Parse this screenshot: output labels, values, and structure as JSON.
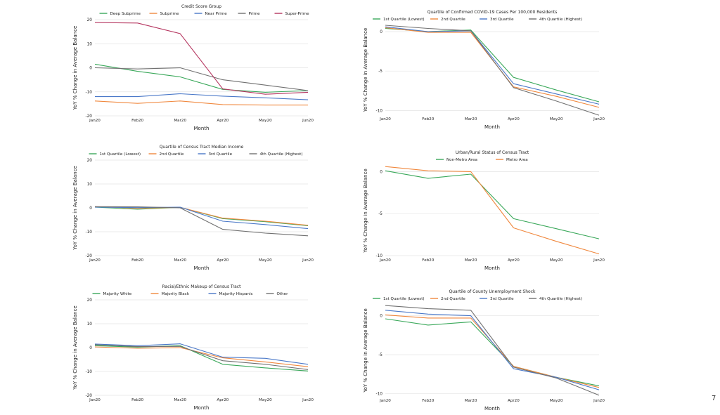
{
  "page": {
    "number": "7"
  },
  "chart_data": [
    {
      "type": "line",
      "legend_title": "Credit Score Group",
      "xlabel": "Month",
      "ylabel": "YoY % Change in Average Balance",
      "categories": [
        "Jan20",
        "Feb20",
        "Mar20",
        "Apr20",
        "May20",
        "Jun20"
      ],
      "ylim": [
        -20,
        20
      ],
      "yticks": [
        -20,
        -10,
        0,
        10,
        20
      ],
      "series": [
        {
          "name": "Deep Subprime",
          "color": "#3aa85a",
          "values": [
            1.5,
            -1.5,
            -3.8,
            -9.0,
            -10.2,
            -9.5
          ]
        },
        {
          "name": "Subprime",
          "color": "#f0883e",
          "values": [
            -13.8,
            -14.8,
            -13.8,
            -15.3,
            -15.5,
            -15.5
          ]
        },
        {
          "name": "Near Prime",
          "color": "#4a78c8",
          "values": [
            -12.0,
            -12.0,
            -10.8,
            -11.8,
            -12.5,
            -13.3
          ]
        },
        {
          "name": "Prime",
          "color": "#707070",
          "values": [
            0.0,
            -0.5,
            0.0,
            -5.0,
            -7.2,
            -9.5
          ]
        },
        {
          "name": "Super-Prime",
          "color": "#b5355f",
          "values": [
            18.8,
            18.6,
            14.2,
            -8.8,
            -11.0,
            -10.2
          ]
        }
      ]
    },
    {
      "type": "line",
      "legend_title": "Quartile of Confirmed COVID-19 Cases Per 100,000 Residents",
      "xlabel": "Month",
      "ylabel": "YoY % Change in Average Balance",
      "categories": [
        "Jan20",
        "Feb20",
        "Mar20",
        "Apr20",
        "May20",
        "Jun20"
      ],
      "ylim": [
        -10.5,
        0.8
      ],
      "yticks": [
        -10,
        -5,
        0
      ],
      "series": [
        {
          "name": "1st Quartile (Lowest)",
          "color": "#3aa85a",
          "values": [
            0.4,
            0.0,
            0.2,
            -5.8,
            -7.4,
            -8.9
          ]
        },
        {
          "name": "2nd Quartile",
          "color": "#f0883e",
          "values": [
            0.5,
            -0.1,
            -0.1,
            -7.0,
            -8.2,
            -9.6
          ]
        },
        {
          "name": "3rd Quartile",
          "color": "#4a78c8",
          "values": [
            0.6,
            0.0,
            0.1,
            -6.6,
            -7.9,
            -9.2
          ]
        },
        {
          "name": "4th Quartile (Highest)",
          "color": "#707070",
          "values": [
            0.8,
            0.4,
            0.1,
            -7.1,
            -8.8,
            -10.6
          ]
        }
      ]
    },
    {
      "type": "line",
      "legend_title": "Quartile of Census Tract Median Income",
      "xlabel": "Month",
      "ylabel": "YoY % Change in Average Balance",
      "categories": [
        "Jan20",
        "Feb20",
        "Mar20",
        "Apr20",
        "May20",
        "Jun20"
      ],
      "ylim": [
        -20,
        20
      ],
      "yticks": [
        -20,
        -10,
        0,
        10,
        20
      ],
      "series": [
        {
          "name": "1st Quartile (Lowest)",
          "color": "#3aa85a",
          "values": [
            0.3,
            -0.6,
            0.2,
            -4.5,
            -5.8,
            -7.5
          ]
        },
        {
          "name": "2nd Quartile",
          "color": "#f0883e",
          "values": [
            0.5,
            -0.2,
            0.2,
            -4.3,
            -5.6,
            -7.3
          ]
        },
        {
          "name": "3rd Quartile",
          "color": "#4a78c8",
          "values": [
            0.3,
            0.1,
            0.3,
            -5.6,
            -7.0,
            -8.7
          ]
        },
        {
          "name": "4th Quartile (Highest)",
          "color": "#707070",
          "values": [
            0.5,
            0.4,
            0.0,
            -9.0,
            -10.6,
            -11.7
          ]
        }
      ]
    },
    {
      "type": "line",
      "legend_title": "Urban/Rural Status of Census Tract",
      "xlabel": "Month",
      "ylabel": "YoY % Change in Average Balance",
      "categories": [
        "Jan20",
        "Feb20",
        "Mar20",
        "Apr20",
        "May20",
        "Jun20"
      ],
      "ylim": [
        -10,
        0.7
      ],
      "yticks": [
        -10,
        -5,
        0
      ],
      "series": [
        {
          "name": "Non-Metro Area",
          "color": "#3aa85a",
          "values": [
            0.1,
            -0.8,
            -0.3,
            -5.6,
            -6.8,
            -8.0
          ]
        },
        {
          "name": "Metro Area",
          "color": "#f0883e",
          "values": [
            0.6,
            0.1,
            0.0,
            -6.7,
            -8.3,
            -9.8
          ]
        }
      ]
    },
    {
      "type": "line",
      "legend_title": "Racial/Ethnic Makeup of Census Tract",
      "xlabel": "Month",
      "ylabel": "YoY % Change in Average Balance",
      "categories": [
        "Jan20",
        "Feb20",
        "Mar20",
        "Apr20",
        "May20",
        "Jun20"
      ],
      "ylim": [
        -20,
        20
      ],
      "yticks": [
        -20,
        -10,
        0,
        10,
        20
      ],
      "series": [
        {
          "name": "Majority White",
          "color": "#3aa85a",
          "values": [
            0.8,
            0.2,
            0.8,
            -7.0,
            -8.5,
            -9.8
          ]
        },
        {
          "name": "Majority Black",
          "color": "#f0883e",
          "values": [
            0.3,
            -0.3,
            0.0,
            -4.3,
            -6.0,
            -8.0
          ]
        },
        {
          "name": "Majority Hispanic",
          "color": "#4a78c8",
          "values": [
            1.5,
            0.8,
            1.6,
            -4.0,
            -4.5,
            -7.0
          ]
        },
        {
          "name": "Other",
          "color": "#707070",
          "values": [
            1.2,
            0.4,
            0.5,
            -5.5,
            -7.0,
            -9.2
          ]
        }
      ]
    },
    {
      "type": "line",
      "legend_title": "Quartile of County Unemployment Shock",
      "xlabel": "Month",
      "ylabel": "YoY % Change in Average Balance",
      "categories": [
        "Jan20",
        "Feb20",
        "Mar20",
        "Apr20",
        "May20",
        "Jun20"
      ],
      "ylim": [
        -10.3,
        1.4
      ],
      "yticks": [
        -10,
        -5,
        0
      ],
      "series": [
        {
          "name": "1st Quartile (Lowest)",
          "color": "#3aa85a",
          "values": [
            -0.4,
            -1.2,
            -0.8,
            -6.5,
            -7.9,
            -9.0
          ]
        },
        {
          "name": "2nd Quartile",
          "color": "#f0883e",
          "values": [
            0.1,
            -0.3,
            -0.3,
            -6.5,
            -7.9,
            -9.2
          ]
        },
        {
          "name": "3rd Quartile",
          "color": "#4a78c8",
          "values": [
            0.7,
            0.2,
            0.0,
            -6.8,
            -7.9,
            -9.5
          ]
        },
        {
          "name": "4th Quartile (Highest)",
          "color": "#707070",
          "values": [
            1.3,
            0.9,
            0.7,
            -6.6,
            -8.0,
            -10.2
          ]
        }
      ]
    }
  ]
}
